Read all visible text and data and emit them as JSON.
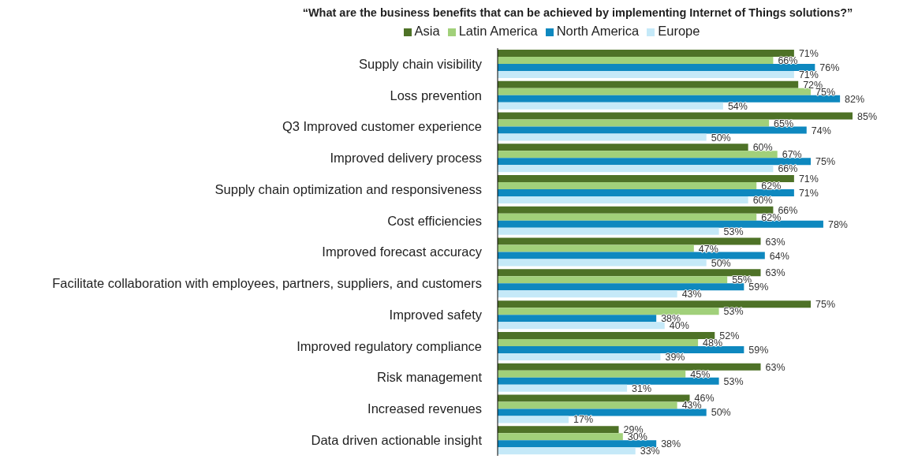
{
  "chart_data": {
    "type": "bar",
    "orientation": "horizontal",
    "title": "“What are the business benefits that can be achieved by implementing Internet of Things solutions?”",
    "categories": [
      "Supply chain visibility",
      "Loss prevention",
      "Q3 Improved customer experience",
      "Improved delivery process",
      "Supply chain optimization and responsiveness",
      "Cost efficiencies",
      "Improved forecast accuracy",
      "Facilitate collaboration with employees, partners, suppliers, and customers",
      "Improved safety",
      "Improved regulatory compliance",
      "Risk management",
      "Increased revenues",
      "Data driven actionable insight"
    ],
    "series": [
      {
        "name": "Asia",
        "color": "#4e7227",
        "values": [
          71,
          72,
          85,
          60,
          71,
          66,
          63,
          63,
          75,
          52,
          63,
          46,
          29
        ],
        "value_labels": [
          "71%",
          "72%",
          "85%",
          "60%",
          "71%",
          "66%",
          "63%",
          "63%",
          "75%",
          "52%",
          "63%",
          "46%",
          "29%"
        ]
      },
      {
        "name": "Latin America",
        "color": "#a1d07a",
        "values": [
          66,
          75,
          65,
          67,
          62,
          62,
          47,
          55,
          53,
          48,
          45,
          43,
          30
        ],
        "value_labels": [
          "66%",
          "75%",
          "65%",
          "67%",
          "62%",
          "62%",
          "47%",
          "55%",
          "53%",
          "48%",
          "45%",
          "43%",
          "30%"
        ]
      },
      {
        "name": "North America",
        "color": "#0e88bf",
        "values": [
          76,
          82,
          74,
          75,
          71,
          78,
          64,
          59,
          38,
          59,
          53,
          50,
          38
        ],
        "value_labels": [
          "76%",
          "82%",
          "74%",
          "75%",
          "71%",
          "78%",
          "64%",
          "59%",
          "38%",
          "59%",
          "53%",
          "50%",
          "38%"
        ]
      },
      {
        "name": "Europe",
        "color": "#c5e9f8",
        "values": [
          71,
          54,
          50,
          66,
          60,
          53,
          50,
          43,
          40,
          39,
          31,
          17,
          33
        ],
        "value_labels": [
          "71%",
          "54%",
          "50%",
          "66%",
          "60%",
          "53%",
          "50%",
          "43%",
          "40%",
          "39%",
          "31%",
          "17%",
          "33%"
        ]
      }
    ],
    "legend": "top",
    "grid": false
  }
}
